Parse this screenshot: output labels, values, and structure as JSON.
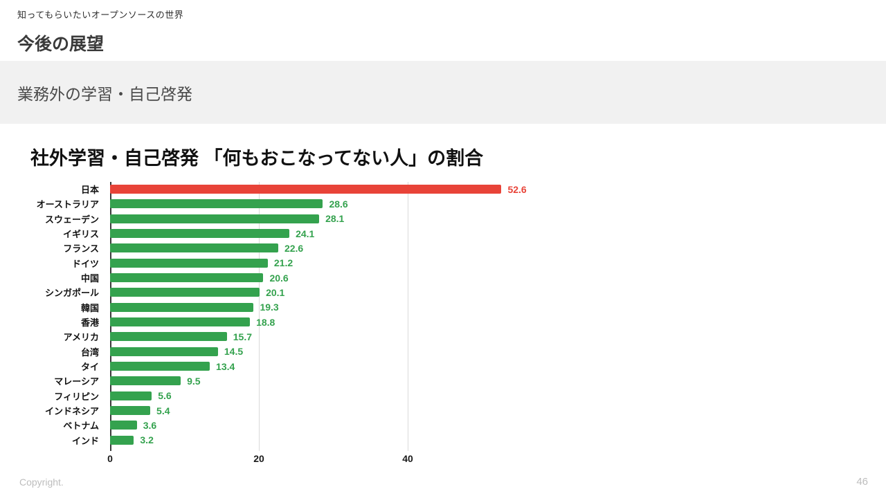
{
  "slide": {
    "eyebrow": "知ってもらいたいオープンソースの世界",
    "title": "今後の展望",
    "section_header": "業務外の学習・自己啓発",
    "footer_left": "Copyright.",
    "page_number": "46"
  },
  "chart_data": {
    "type": "bar",
    "orientation": "horizontal",
    "title": "社外学習・自己啓発 「何もおこなってない人」の割合",
    "categories": [
      "日本",
      "オーストラリア",
      "スウェーデン",
      "イギリス",
      "フランス",
      "ドイツ",
      "中国",
      "シンガポール",
      "韓国",
      "香港",
      "アメリカ",
      "台湾",
      "タイ",
      "マレーシア",
      "フィリピン",
      "インドネシア",
      "ベトナム",
      "インド"
    ],
    "values": [
      52.6,
      28.6,
      28.1,
      24.1,
      22.6,
      21.2,
      20.6,
      20.1,
      19.3,
      18.8,
      15.7,
      14.5,
      13.4,
      9.5,
      5.6,
      5.4,
      3.6,
      3.2
    ],
    "highlight_category": "日本",
    "colors": {
      "default": "#34A24E",
      "highlight": "#E84338"
    },
    "xlim": [
      0,
      57
    ],
    "x_ticks": [
      0,
      20,
      40
    ],
    "grid": true,
    "value_labels": true,
    "legend": "none"
  }
}
